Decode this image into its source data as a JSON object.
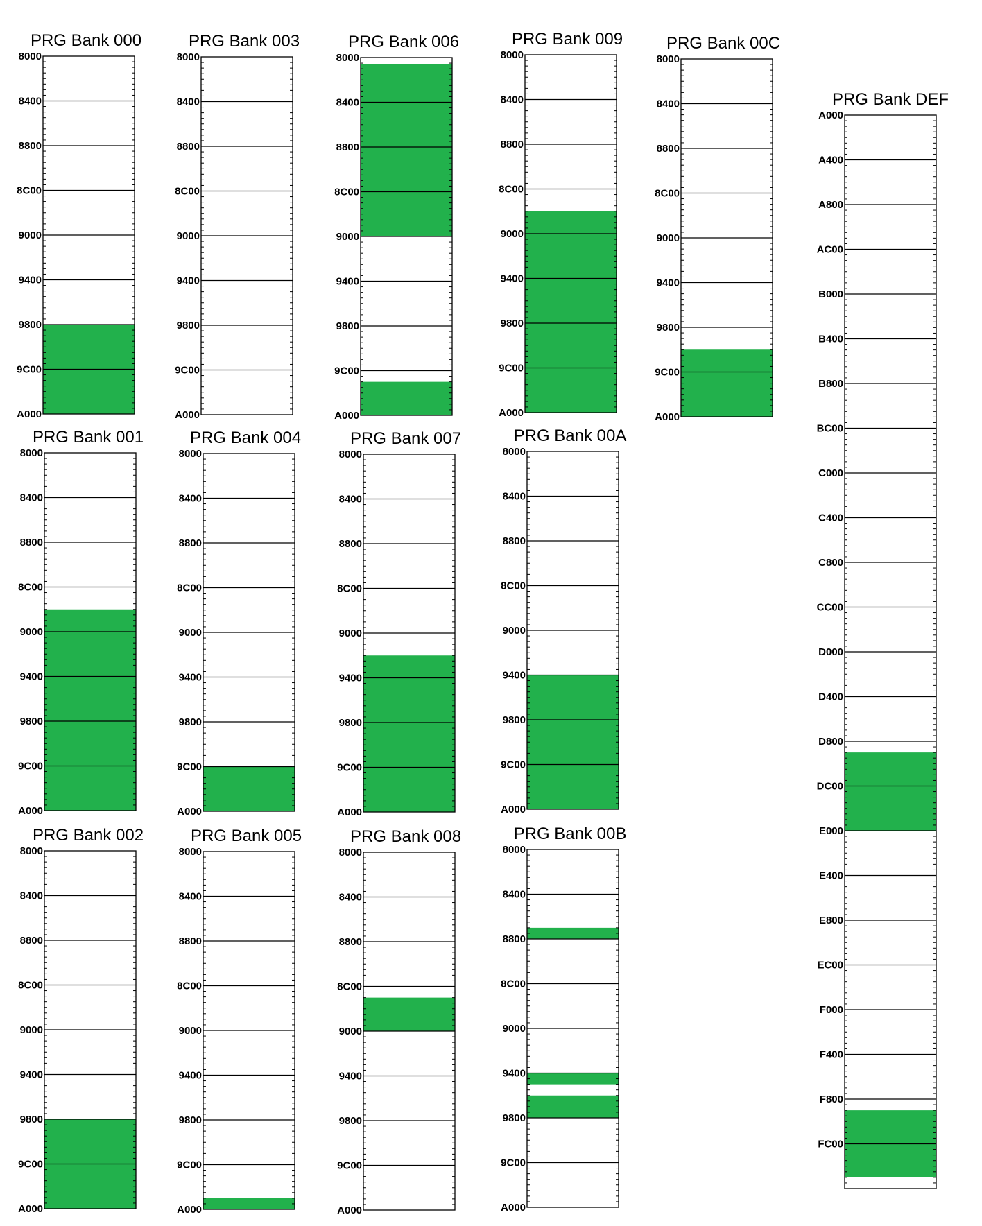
{
  "colors": {
    "fill": "#22b14c",
    "line": "#000000",
    "background": "#ffffff"
  },
  "banks": [
    {
      "title": "PRG Bank 000",
      "ticks": [
        "8000",
        "8400",
        "8800",
        "8C00",
        "9000",
        "9400",
        "9800",
        "9C00",
        "A000"
      ],
      "ranges": [
        [
          6,
          8
        ]
      ]
    },
    {
      "title": "PRG Bank 001",
      "ticks": [
        "8000",
        "8400",
        "8800",
        "8C00",
        "9000",
        "9400",
        "9800",
        "9C00",
        "A000"
      ],
      "ranges": [
        [
          3.5,
          8
        ]
      ]
    },
    {
      "title": "PRG Bank 002",
      "ticks": [
        "8000",
        "8400",
        "8800",
        "8C00",
        "9000",
        "9400",
        "9800",
        "9C00",
        "A000"
      ],
      "ranges": [
        [
          6,
          8
        ]
      ]
    },
    {
      "title": "PRG Bank 003",
      "ticks": [
        "8000",
        "8400",
        "8800",
        "8C00",
        "9000",
        "9400",
        "9800",
        "9C00",
        "A000"
      ],
      "ranges": []
    },
    {
      "title": "PRG Bank 004",
      "ticks": [
        "8000",
        "8400",
        "8800",
        "8C00",
        "9000",
        "9400",
        "9800",
        "9C00",
        "A000"
      ],
      "ranges": [
        [
          7,
          8
        ]
      ]
    },
    {
      "title": "PRG Bank 005",
      "ticks": [
        "8000",
        "8400",
        "8800",
        "8C00",
        "9000",
        "9400",
        "9800",
        "9C00",
        "A000"
      ],
      "ranges": [
        [
          7.75,
          8
        ]
      ]
    },
    {
      "title": "PRG Bank 006",
      "ticks": [
        "8000",
        "8400",
        "8800",
        "8C00",
        "9000",
        "9400",
        "9800",
        "9C00",
        "A000"
      ],
      "ranges": [
        [
          0.15,
          4
        ],
        [
          7.25,
          8
        ]
      ]
    },
    {
      "title": "PRG Bank 007",
      "ticks": [
        "8000",
        "8400",
        "8800",
        "8C00",
        "9000",
        "9400",
        "9800",
        "9C00",
        "A000"
      ],
      "ranges": [
        [
          4.5,
          8
        ]
      ]
    },
    {
      "title": "PRG Bank 008",
      "ticks": [
        "8000",
        "8400",
        "8800",
        "8C00",
        "9000",
        "9400",
        "9800",
        "9C00",
        "A000"
      ],
      "ranges": [
        [
          3.25,
          4
        ]
      ]
    },
    {
      "title": "PRG Bank 009",
      "ticks": [
        "8000",
        "8400",
        "8800",
        "8C00",
        "9000",
        "9400",
        "9800",
        "9C00",
        "A000"
      ],
      "ranges": [
        [
          3.5,
          8
        ]
      ]
    },
    {
      "title": "PRG Bank 00A",
      "ticks": [
        "8000",
        "8400",
        "8800",
        "8C00",
        "9000",
        "9400",
        "9800",
        "9C00",
        "A000"
      ],
      "ranges": [
        [
          5,
          8
        ]
      ]
    },
    {
      "title": "PRG Bank 00B",
      "ticks": [
        "8000",
        "8400",
        "8800",
        "8C00",
        "9000",
        "9400",
        "9800",
        "9C00",
        "A000"
      ],
      "ranges": [
        [
          1.75,
          2
        ],
        [
          5,
          5.25
        ],
        [
          5.5,
          6
        ]
      ]
    },
    {
      "title": "PRG Bank 00C",
      "ticks": [
        "8000",
        "8400",
        "8800",
        "8C00",
        "9000",
        "9400",
        "9800",
        "9C00",
        "A000"
      ],
      "ranges": [
        [
          6.5,
          8
        ]
      ]
    },
    {
      "title": "PRG Bank DEF",
      "ticks": [
        "A000",
        "A400",
        "A800",
        "AC00",
        "B000",
        "B400",
        "B800",
        "BC00",
        "C000",
        "C400",
        "C800",
        "CC00",
        "D000",
        "D400",
        "D800",
        "DC00",
        "E000",
        "E400",
        "E800",
        "EC00",
        "F000",
        "F400",
        "F800",
        "FC00"
      ],
      "ranges": [
        [
          14.25,
          16
        ],
        [
          22.25,
          23.75
        ]
      ]
    }
  ]
}
